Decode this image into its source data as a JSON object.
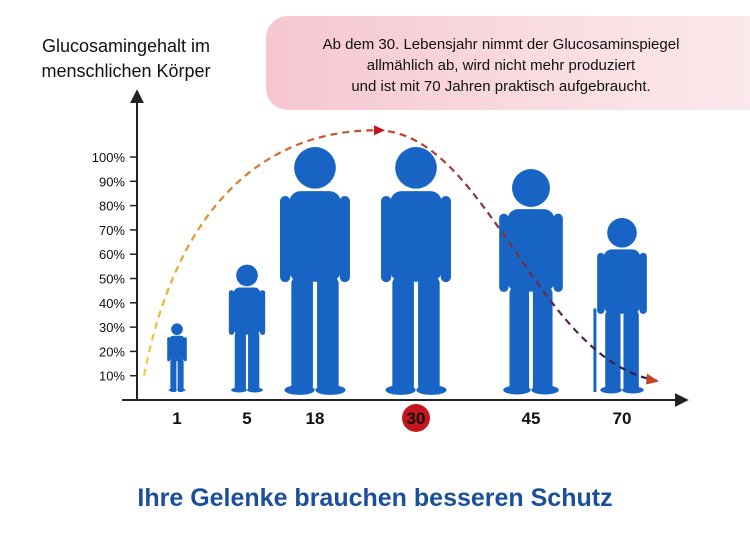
{
  "chart_data": {
    "type": "line",
    "ylabel": "Glucosamingehalt im menschlichen Körper",
    "annotation": "Ab dem 30. Lebensjahr nimmt der Glucosaminspiegel allmählich ab, wird nicht mehr produziert und ist mit 70 Jahren praktisch aufgebraucht.",
    "annotation_lines": [
      "Ab dem 30. Lebensjahr nimmt der Glucosaminspiegel",
      "allmählich ab, wird nicht mehr produziert",
      "und ist mit 70 Jahren praktisch aufgebraucht."
    ],
    "categories": [
      "1",
      "5",
      "18",
      "30",
      "45",
      "70"
    ],
    "highlight_category": "30",
    "yticks": [
      "10%",
      "20%",
      "30%",
      "40%",
      "50%",
      "60%",
      "70%",
      "80%",
      "90%",
      "100%"
    ],
    "ylim": [
      0,
      100
    ],
    "grid": false,
    "figure_heights": [
      28,
      52,
      100,
      100,
      91,
      71
    ],
    "curve_rising": {
      "x": [
        "1",
        "30"
      ],
      "y": [
        10,
        111
      ]
    },
    "curve_falling": {
      "x": [
        "30",
        "70"
      ],
      "y": [
        111,
        8
      ]
    }
  },
  "tagline": "Ihre Gelenke brauchen besseren Schutz",
  "colors": {
    "figures": "#1764c4",
    "axis": "#222222",
    "highlight": "#c4161c",
    "curve_start": "#f2d13a",
    "curve_mid": "#c2452a",
    "curve_end": "#2a1a5e",
    "tagline": "#1b4f9c"
  }
}
